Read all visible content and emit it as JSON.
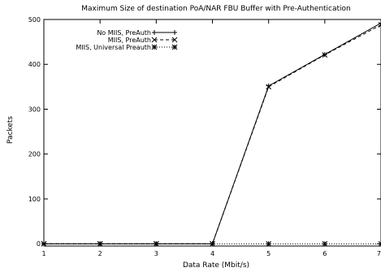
{
  "chart_data": {
    "type": "line",
    "title": "Maximum Size of destination PoA/NAR FBU Buffer with Pre-Authentication",
    "xlabel": "Data Rate (Mbit/s)",
    "ylabel": "Packets",
    "xlim": [
      1,
      7
    ],
    "ylim": [
      -5,
      500
    ],
    "xticks": [
      "1",
      "2",
      "3",
      "4",
      "5",
      "6",
      "7"
    ],
    "yticks": [
      "0",
      "100",
      "200",
      "300",
      "400",
      "500"
    ],
    "grid": false,
    "legend_position": "top-left",
    "x": [
      1,
      2,
      3,
      4,
      5,
      6,
      7
    ],
    "series": [
      {
        "name": "No MIIS, PreAuth",
        "values": [
          0,
          0,
          0,
          0,
          352,
          422,
          492
        ],
        "marker": "plus",
        "dash": "solid"
      },
      {
        "name": "MIIS, PreAuth",
        "values": [
          0,
          0,
          0,
          0,
          350,
          421,
          488
        ],
        "marker": "x",
        "dash": "dashed"
      },
      {
        "name": "MIIS, Universal Preauth",
        "values": [
          0,
          0,
          0,
          0,
          0,
          0,
          0
        ],
        "marker": "star",
        "dash": "dotted"
      }
    ]
  }
}
